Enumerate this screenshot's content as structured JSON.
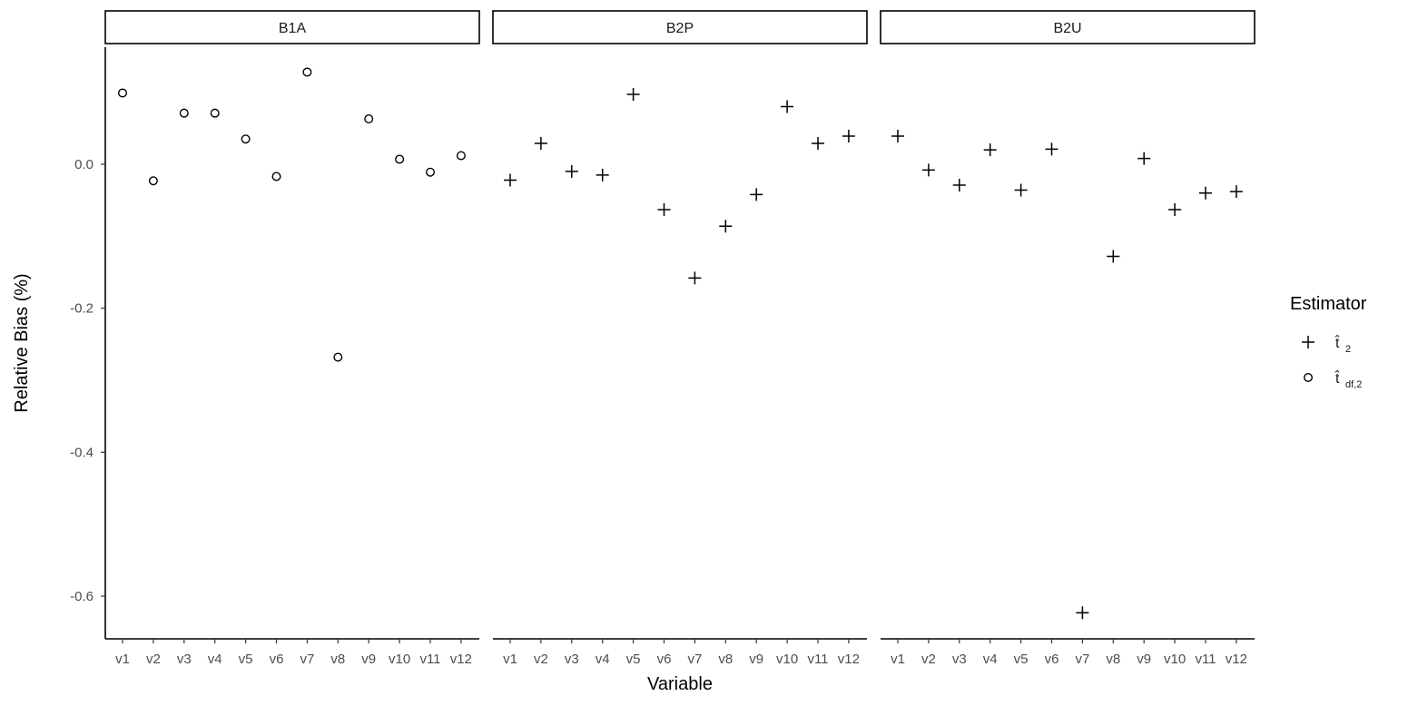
{
  "chart_data": {
    "type": "scatter",
    "xlabel": "Variable",
    "ylabel": "Relative Bias (%)",
    "categories": [
      "v1",
      "v2",
      "v3",
      "v4",
      "v5",
      "v6",
      "v7",
      "v8",
      "v9",
      "v10",
      "v11",
      "v12"
    ],
    "ylim": [
      -0.66,
      0.165
    ],
    "yticks": [
      0.0,
      -0.2,
      -0.4,
      -0.6
    ],
    "ytick_labels": [
      "0.0",
      "-0.2",
      "-0.4",
      "-0.6"
    ],
    "grid": false,
    "legend": {
      "title": "Estimator",
      "placement": "right",
      "entries": [
        {
          "key": "t2",
          "label": "t̂",
          "sub": "2",
          "marker": "plus"
        },
        {
          "key": "tdf2",
          "label": "t̂",
          "sub": "df,2",
          "marker": "circle"
        }
      ]
    },
    "facets": [
      {
        "name": "B1A",
        "series": [
          {
            "estimator": "tdf2",
            "values": [
              0.099,
              -0.023,
              0.071,
              0.071,
              0.035,
              -0.017,
              0.128,
              -0.268,
              0.063,
              0.007,
              -0.011,
              0.012
            ]
          }
        ]
      },
      {
        "name": "B2P",
        "series": [
          {
            "estimator": "t2",
            "values": [
              -0.022,
              0.029,
              -0.01,
              -0.015,
              0.097,
              -0.063,
              -0.158,
              -0.086,
              -0.042,
              0.08,
              0.029,
              0.039
            ]
          }
        ]
      },
      {
        "name": "B2U",
        "series": [
          {
            "estimator": "t2",
            "values": [
              0.039,
              -0.008,
              -0.029,
              0.02,
              -0.036,
              0.021,
              -0.623,
              -0.128,
              0.008,
              -0.063,
              -0.04,
              -0.038
            ]
          }
        ]
      }
    ]
  }
}
